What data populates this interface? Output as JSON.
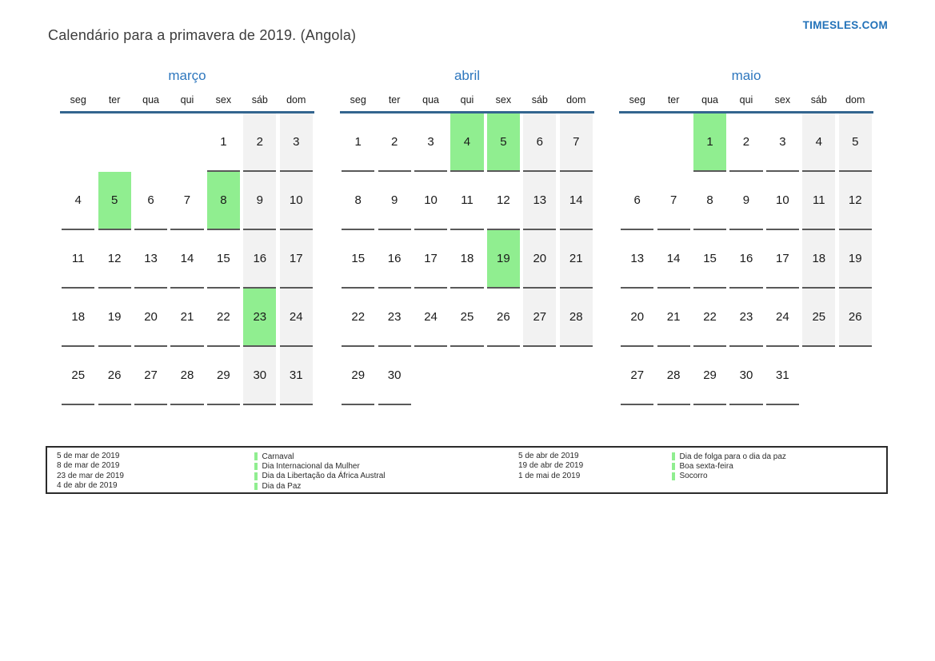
{
  "header": {
    "title": "Calendário para a primavera de 2019. (Angola)",
    "site": "TIMESLES.COM"
  },
  "weekdays": [
    "seg",
    "ter",
    "qua",
    "qui",
    "sex",
    "sáb",
    "dom"
  ],
  "weekend_column_indexes": [
    5,
    6
  ],
  "months": [
    {
      "name": "março",
      "highlighted": [
        5,
        8,
        23
      ],
      "weeks": [
        [
          null,
          null,
          null,
          null,
          1,
          2,
          3
        ],
        [
          4,
          5,
          6,
          7,
          8,
          9,
          10
        ],
        [
          11,
          12,
          13,
          14,
          15,
          16,
          17
        ],
        [
          18,
          19,
          20,
          21,
          22,
          23,
          24
        ],
        [
          25,
          26,
          27,
          28,
          29,
          30,
          31
        ]
      ]
    },
    {
      "name": "abril",
      "highlighted": [
        4,
        5,
        19
      ],
      "weeks": [
        [
          1,
          2,
          3,
          4,
          5,
          6,
          7
        ],
        [
          8,
          9,
          10,
          11,
          12,
          13,
          14
        ],
        [
          15,
          16,
          17,
          18,
          19,
          20,
          21
        ],
        [
          22,
          23,
          24,
          25,
          26,
          27,
          28
        ],
        [
          29,
          30,
          null,
          null,
          null,
          null,
          null
        ]
      ]
    },
    {
      "name": "maio",
      "highlighted": [
        1
      ],
      "weeks": [
        [
          null,
          null,
          1,
          2,
          3,
          4,
          5
        ],
        [
          6,
          7,
          8,
          9,
          10,
          11,
          12
        ],
        [
          13,
          14,
          15,
          16,
          17,
          18,
          19
        ],
        [
          20,
          21,
          22,
          23,
          24,
          25,
          26
        ],
        [
          27,
          28,
          29,
          30,
          31,
          null,
          null
        ]
      ]
    }
  ],
  "legend": {
    "columns": [
      {
        "dates": [
          "5 de mar de 2019",
          "8 de mar de 2019",
          "23 de mar de 2019",
          "4 de abr de 2019"
        ],
        "holidays": [
          "Carnaval",
          "Dia Internacional da Mulher",
          "Dia da Libertação da África Austral",
          "Dia da Paz"
        ]
      },
      {
        "dates": [
          "5 de abr de 2019",
          "19 de abr de 2019",
          "1 de mai de 2019"
        ],
        "holidays": [
          "Dia de folga para o dia da paz",
          "Boa sexta-feira",
          "Socorro"
        ]
      }
    ]
  },
  "colors": {
    "accent_blue": "#2e77be",
    "link_blue": "#2272b9",
    "header_line_blue": "#33658f",
    "highlight_green": "#90ee90",
    "weekend_gray": "#f2f2f2",
    "cell_underline": "#595959",
    "title_gray": "#3d3d3d",
    "legend_border": "#2b2b2b"
  }
}
